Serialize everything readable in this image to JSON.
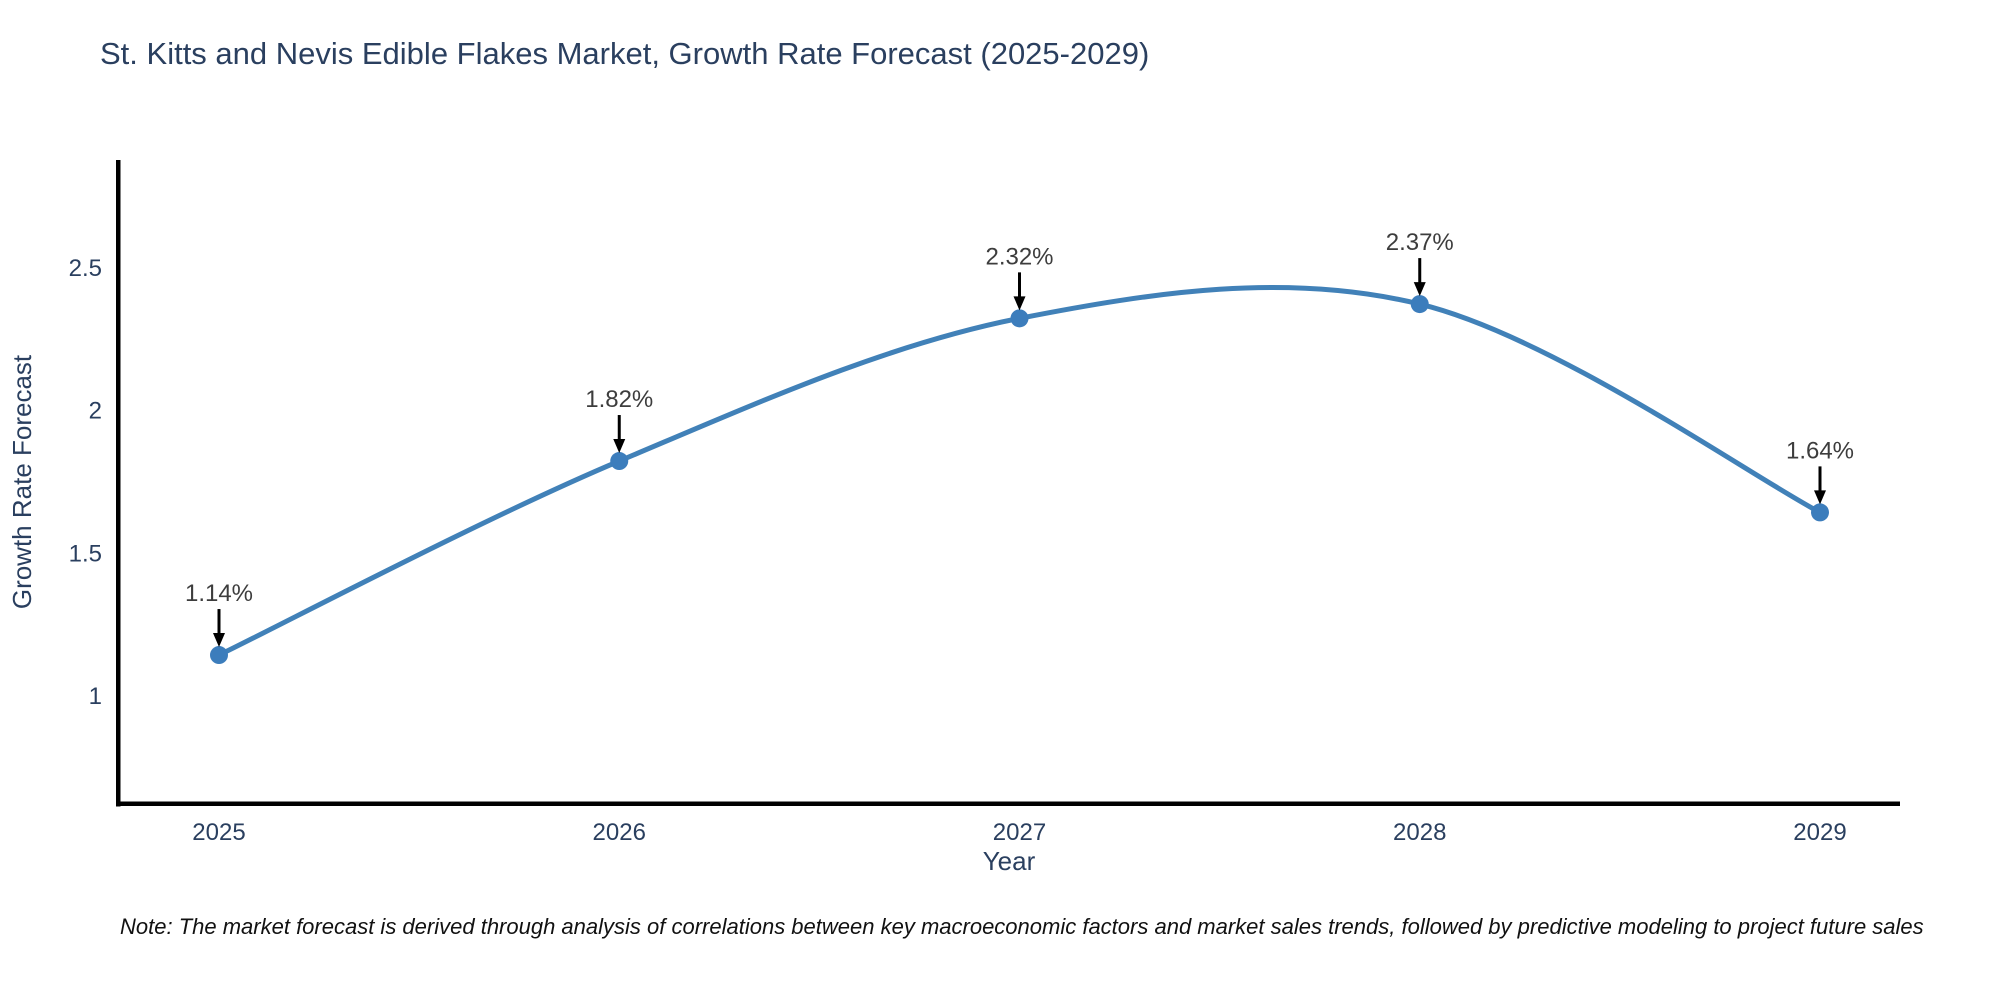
{
  "chart": {
    "title": "St. Kitts and Nevis Edible Flakes Market, Growth Rate Forecast (2025-2029)",
    "note": "Note: The market forecast is derived through analysis of correlations between key macroeconomic factors and market sales trends, followed by predictive modeling to project future sales",
    "colors": {
      "title": "#2a3f5f",
      "tick_label": "#2a3f5f",
      "line": "#4181b8",
      "marker": "#3c7dbc",
      "axis": "#000000",
      "annotation_text": "#3d3d3d",
      "annotation_arrow": "#000000",
      "background": "#ffffff"
    }
  },
  "chart_data": {
    "type": "line",
    "title": "St. Kitts and Nevis Edible Flakes Market, Growth Rate Forecast (2025-2029)",
    "xlabel": "Year",
    "ylabel": "Growth Rate Forecast",
    "categories": [
      "2025",
      "2026",
      "2027",
      "2028",
      "2029"
    ],
    "values": [
      1.14,
      1.82,
      2.32,
      2.37,
      1.64
    ],
    "point_labels": [
      "1.14%",
      "1.82%",
      "2.32%",
      "2.37%",
      "1.64%"
    ],
    "yticks": [
      1,
      1.5,
      2,
      2.5
    ],
    "ylim": [
      0.625,
      2.875
    ],
    "line_shape": "spline",
    "grid": false,
    "legend": "none",
    "markers": true,
    "annotations": "value labels with down arrows above each point"
  }
}
